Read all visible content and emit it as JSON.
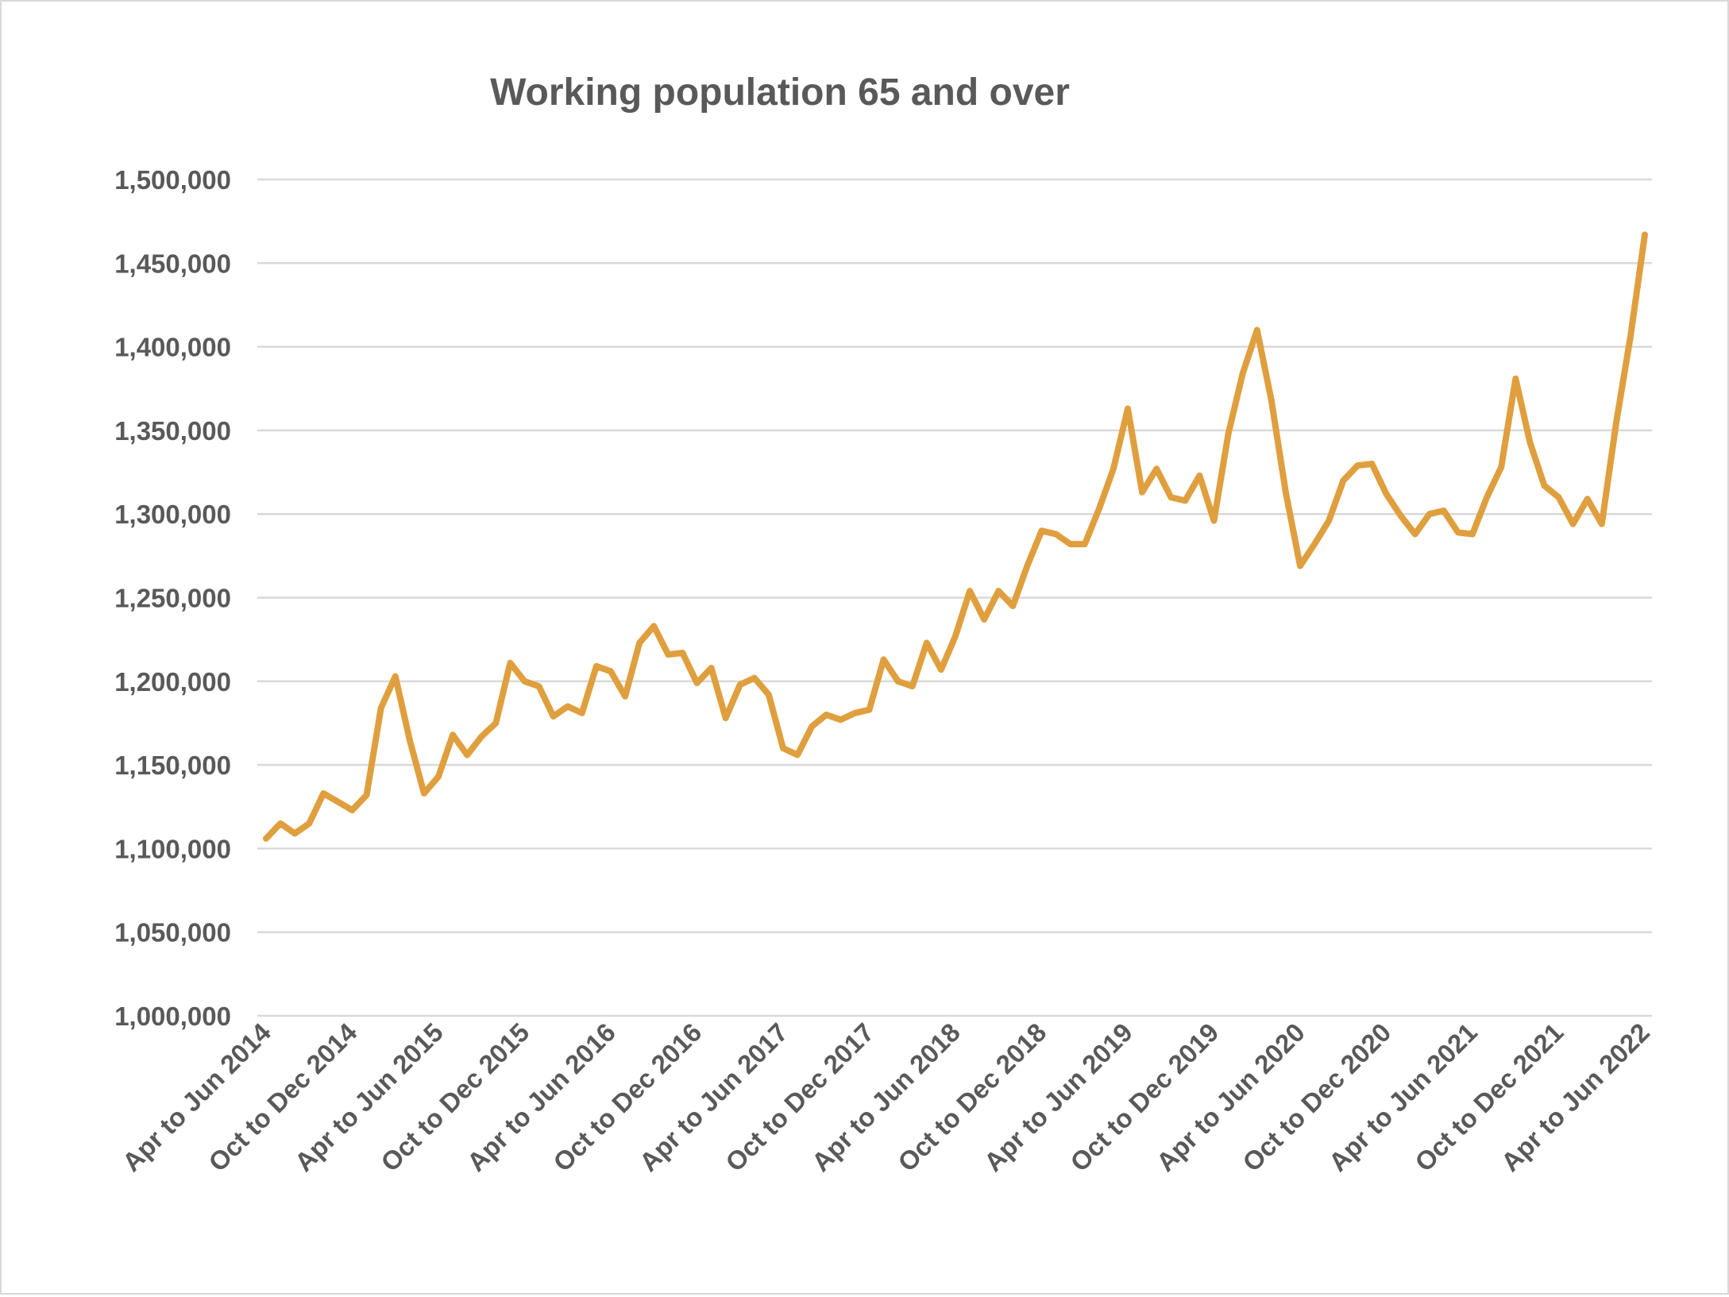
{
  "chart_data": {
    "type": "line",
    "title": "Working population 65 and over",
    "xlabel": "",
    "ylabel": "",
    "ylim": [
      1000000,
      1500000
    ],
    "y_ticks": [
      1000000,
      1050000,
      1100000,
      1150000,
      1200000,
      1250000,
      1300000,
      1350000,
      1400000,
      1450000,
      1500000
    ],
    "y_tick_labels": [
      "1,000,000",
      "1,050,000",
      "1,100,000",
      "1,150,000",
      "1,200,000",
      "1,250,000",
      "1,300,000",
      "1,350,000",
      "1,400,000",
      "1,450,000",
      "1,500,000"
    ],
    "grid": true,
    "legend": "none",
    "x_tick_every": 6,
    "x_tick_labels": [
      "Apr to Jun 2014",
      "Oct to Dec 2014",
      "Apr to Jun 2015",
      "Oct to Dec 2015",
      "Apr to Jun 2016",
      "Oct to Dec 2016",
      "Apr to Jun 2017",
      "Oct to Dec 2017",
      "Apr to Jun 2018",
      "Oct to Dec 2018",
      "Apr to Jun 2019",
      "Oct to Dec 2019",
      "Apr to Jun 2020",
      "Oct to Dec 2020",
      "Apr to Jun 2021",
      "Oct to Dec 2021",
      "Apr to Jun 2022"
    ],
    "series": [
      {
        "name": "Working population 65 and over",
        "color": "#E09F3E",
        "values": [
          1106000,
          1115000,
          1109000,
          1115000,
          1133000,
          1128000,
          1123000,
          1132000,
          1184000,
          1203000,
          1165000,
          1133000,
          1143000,
          1168000,
          1156000,
          1167000,
          1175000,
          1211000,
          1200000,
          1197000,
          1179000,
          1185000,
          1181000,
          1209000,
          1206000,
          1191000,
          1223000,
          1233000,
          1216000,
          1217000,
          1199000,
          1208000,
          1178000,
          1198000,
          1202000,
          1192000,
          1160000,
          1156000,
          1173000,
          1180000,
          1177000,
          1181000,
          1183000,
          1213000,
          1200000,
          1197000,
          1223000,
          1207000,
          1227000,
          1254000,
          1237000,
          1254000,
          1245000,
          1269000,
          1290000,
          1288000,
          1282000,
          1282000,
          1303000,
          1327000,
          1363000,
          1313000,
          1327000,
          1310000,
          1308000,
          1323000,
          1296000,
          1348000,
          1384000,
          1410000,
          1368000,
          1313000,
          1269000,
          1282000,
          1296000,
          1320000,
          1329000,
          1330000,
          1312000,
          1299000,
          1288000,
          1300000,
          1302000,
          1289000,
          1288000,
          1310000,
          1328000,
          1381000,
          1343000,
          1317000,
          1310000,
          1294000,
          1309000,
          1294000,
          1354000,
          1406000,
          1467000
        ]
      }
    ]
  },
  "colors": {
    "grid": "#d9d9d9",
    "text": "#595959"
  }
}
